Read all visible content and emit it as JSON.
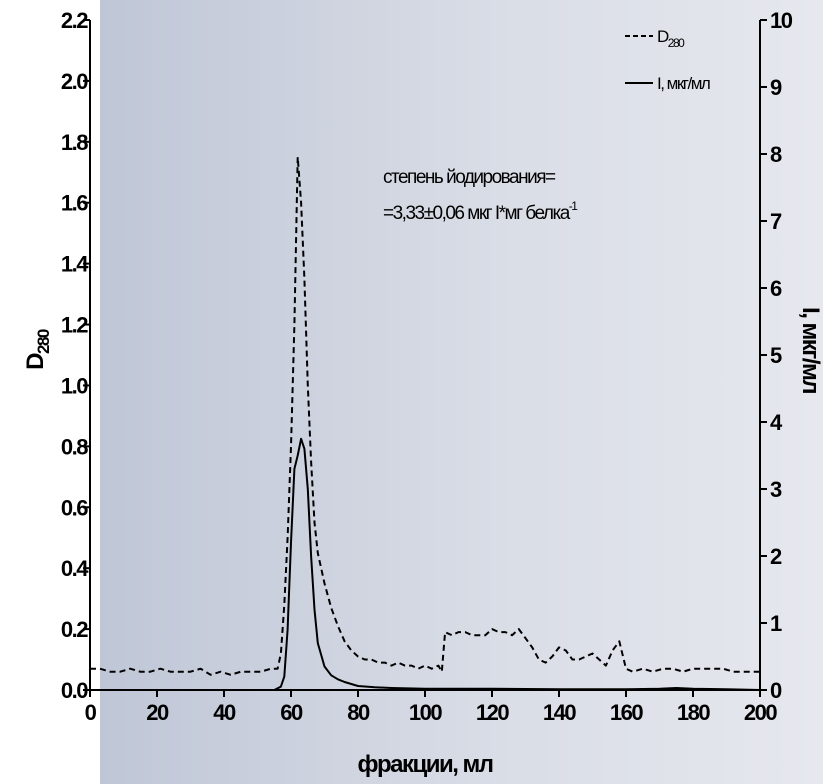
{
  "chart_data": {
    "type": "line",
    "xlabel": "фракции, мл",
    "ylabel_left": "D",
    "ylabel_left_sub": "280",
    "ylabel_right": "I, мкг/мл",
    "xlim": [
      0,
      200
    ],
    "ylim_left": [
      0,
      2.2
    ],
    "ylim_right": [
      0,
      10
    ],
    "x_ticks": [
      "0",
      "20",
      "40",
      "60",
      "80",
      "100",
      "120",
      "140",
      "160",
      "180",
      "200"
    ],
    "y_left_ticks": [
      "0.0",
      "0.2",
      "0.4",
      "0.6",
      "0.8",
      "1.0",
      "1.2",
      "1.4",
      "1.6",
      "1.8",
      "2.0",
      "2.2"
    ],
    "y_right_ticks": [
      "0",
      "1",
      "2",
      "3",
      "4",
      "5",
      "6",
      "7",
      "8",
      "9",
      "10"
    ],
    "legend_placement": "top-right",
    "annotation": {
      "line1": "степень йодирования=",
      "line2": "=3,33±0,06 мкг I*мг белка",
      "line2_sup": "-1"
    },
    "series": [
      {
        "name": "D",
        "name_sub": "280",
        "axis": "left",
        "style": "dashed",
        "color": "#000000",
        "x": [
          0,
          3,
          6,
          9,
          12,
          15,
          18,
          21,
          24,
          27,
          30,
          33,
          36,
          39,
          42,
          45,
          48,
          51,
          54,
          56,
          57,
          58,
          59,
          60,
          61,
          62,
          63,
          64,
          65,
          66,
          67,
          68,
          70,
          72,
          74,
          76,
          78,
          80,
          82,
          84,
          86,
          88,
          90,
          92,
          94,
          96,
          98,
          100,
          102,
          104,
          105,
          106,
          108,
          110,
          112,
          114,
          116,
          118,
          120,
          122,
          124,
          126,
          128,
          130,
          132,
          134,
          136,
          138,
          140,
          142,
          144,
          146,
          148,
          150,
          152,
          154,
          156,
          158,
          160,
          162,
          165,
          168,
          171,
          174,
          177,
          180,
          183,
          186,
          189,
          192,
          195,
          198,
          200
        ],
        "y": [
          0.07,
          0.07,
          0.06,
          0.06,
          0.07,
          0.06,
          0.06,
          0.07,
          0.06,
          0.06,
          0.06,
          0.07,
          0.05,
          0.06,
          0.05,
          0.06,
          0.06,
          0.06,
          0.07,
          0.07,
          0.12,
          0.28,
          0.5,
          0.8,
          1.2,
          1.75,
          1.6,
          1.35,
          1.0,
          0.75,
          0.55,
          0.45,
          0.35,
          0.27,
          0.21,
          0.16,
          0.13,
          0.11,
          0.1,
          0.1,
          0.09,
          0.09,
          0.08,
          0.09,
          0.08,
          0.08,
          0.07,
          0.08,
          0.07,
          0.08,
          0.06,
          0.19,
          0.18,
          0.19,
          0.19,
          0.18,
          0.18,
          0.18,
          0.2,
          0.19,
          0.19,
          0.18,
          0.2,
          0.17,
          0.14,
          0.1,
          0.09,
          0.11,
          0.14,
          0.13,
          0.1,
          0.1,
          0.11,
          0.12,
          0.1,
          0.08,
          0.13,
          0.16,
          0.07,
          0.06,
          0.07,
          0.06,
          0.07,
          0.07,
          0.06,
          0.07,
          0.07,
          0.07,
          0.07,
          0.06,
          0.06,
          0.06,
          0.06
        ]
      },
      {
        "name": "I, мкг/мл",
        "axis": "right",
        "style": "solid",
        "color": "#000000",
        "x": [
          0,
          20,
          40,
          50,
          55,
          57,
          58,
          59,
          60,
          61,
          62,
          63,
          64,
          65,
          66,
          67,
          68,
          70,
          72,
          74,
          76,
          78,
          80,
          85,
          90,
          100,
          110,
          120,
          140,
          150,
          160,
          170,
          175,
          180,
          190,
          200
        ],
        "y": [
          0.0,
          0.0,
          0.0,
          0.0,
          0.0,
          0.05,
          0.2,
          0.9,
          2.2,
          3.3,
          3.5,
          3.75,
          3.6,
          3.0,
          2.0,
          1.2,
          0.7,
          0.35,
          0.22,
          0.16,
          0.12,
          0.09,
          0.06,
          0.04,
          0.03,
          0.02,
          0.02,
          0.02,
          0.01,
          0.01,
          0.01,
          0.02,
          0.03,
          0.02,
          0.01,
          0.0
        ]
      }
    ]
  }
}
